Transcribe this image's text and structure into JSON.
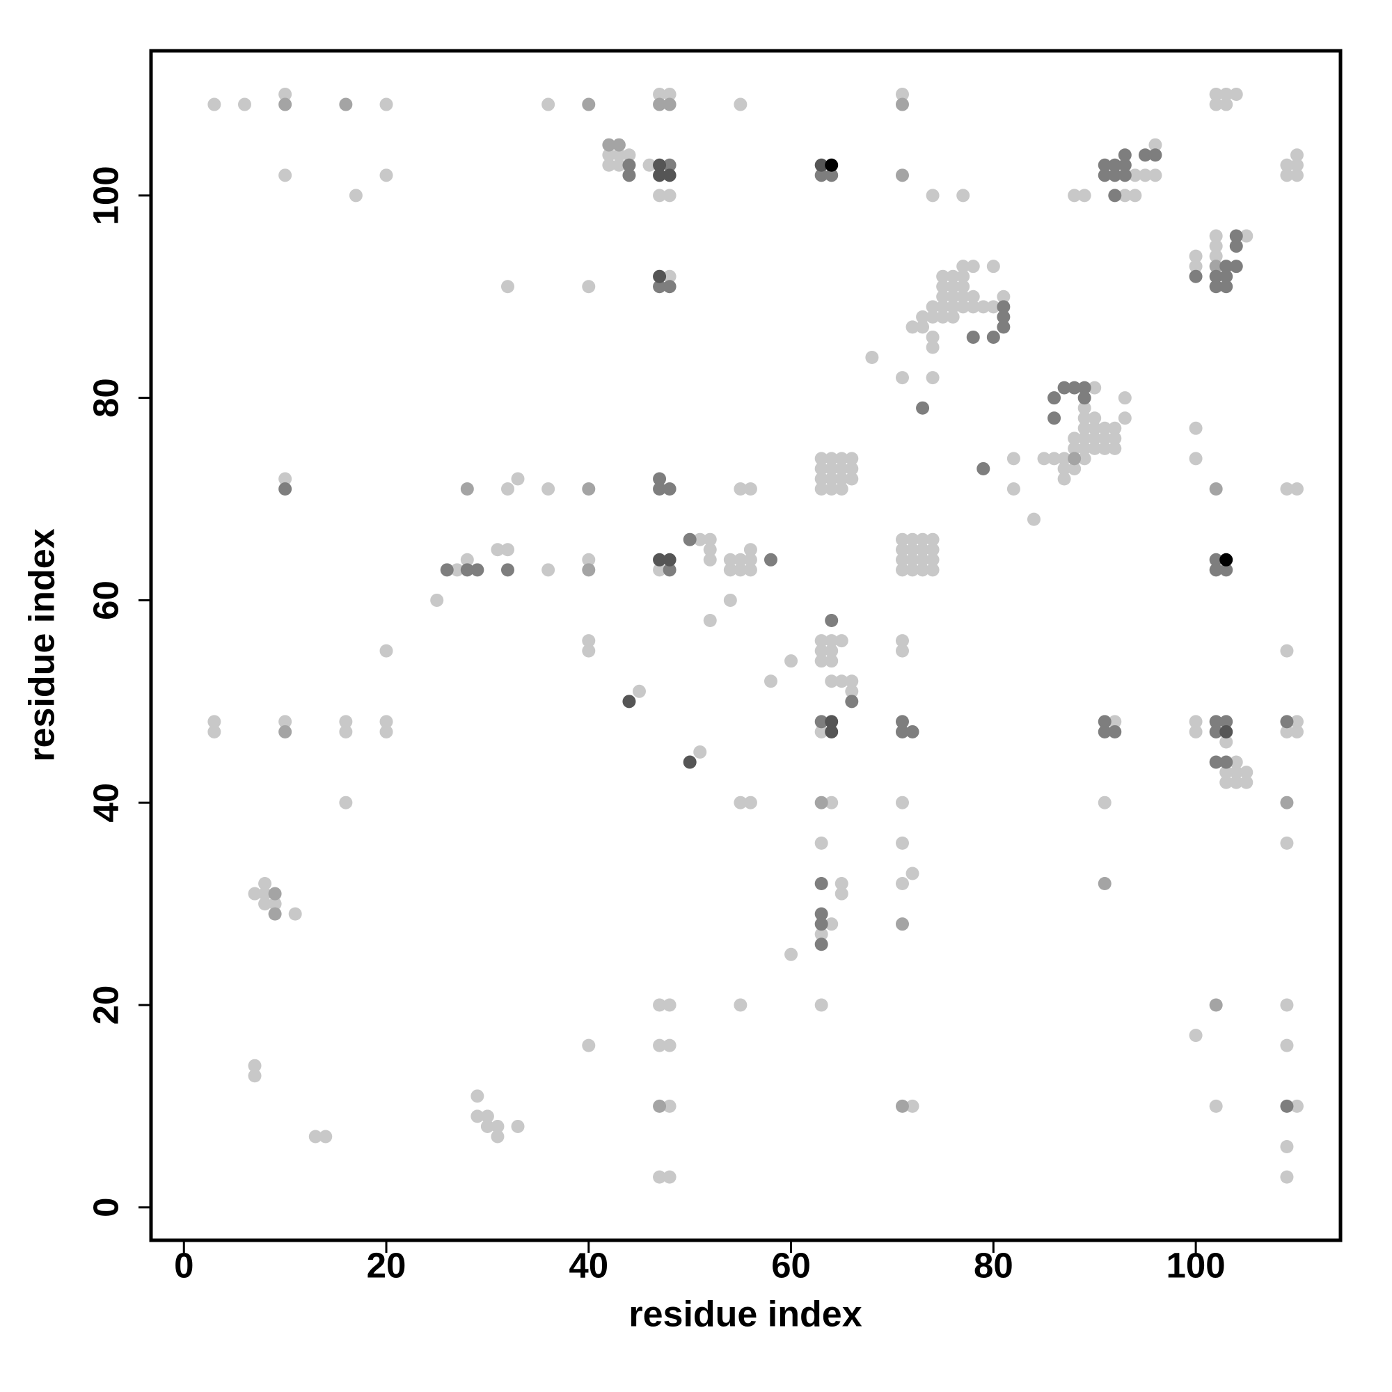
{
  "chart_data": {
    "type": "scatter",
    "xlabel": "residue index",
    "ylabel": "residue index",
    "xlim": [
      -3.25,
      114.3
    ],
    "ylim": [
      -3.25,
      114.3
    ],
    "xticks": [
      0,
      20,
      40,
      60,
      80,
      100
    ],
    "yticks": [
      0,
      20,
      40,
      60,
      80,
      100
    ],
    "grid": false,
    "series": [
      {
        "color": "#c8c8c8",
        "x": [
          10,
          47,
          48,
          71,
          102,
          103,
          104,
          3,
          6,
          20,
          36,
          55,
          102,
          103,
          96,
          42,
          43,
          44,
          110,
          42,
          43,
          46,
          109,
          110,
          10,
          20,
          94,
          95,
          96,
          109,
          110,
          17,
          47,
          48,
          74,
          77,
          88,
          89,
          93,
          94,
          102,
          105,
          102,
          100,
          102,
          77,
          78,
          80,
          100,
          48,
          75,
          76,
          77,
          32,
          40,
          75,
          76,
          77,
          75,
          76,
          77,
          78,
          81,
          74,
          75,
          76,
          77,
          78,
          79,
          80,
          73,
          74,
          75,
          76,
          72,
          73,
          74,
          74,
          68,
          71,
          74,
          90,
          93,
          89,
          89,
          90,
          93,
          89,
          90,
          91,
          92,
          100,
          88,
          89,
          90,
          91,
          92,
          88,
          89,
          90,
          91,
          92,
          63,
          64,
          65,
          66,
          82,
          85,
          86,
          87,
          89,
          100,
          63,
          64,
          65,
          66,
          87,
          88,
          10,
          33,
          63,
          64,
          65,
          66,
          87,
          32,
          36,
          55,
          56,
          63,
          64,
          65,
          82,
          109,
          110,
          84,
          51,
          52,
          71,
          72,
          73,
          74,
          31,
          32,
          52,
          56,
          71,
          72,
          73,
          74,
          28,
          40,
          52,
          54,
          55,
          56,
          71,
          72,
          73,
          74,
          27,
          36,
          47,
          54,
          55,
          56,
          71,
          72,
          73,
          74,
          25,
          54,
          52,
          40,
          63,
          64,
          65,
          71,
          20,
          40,
          63,
          64,
          71,
          109,
          60,
          63,
          64,
          58,
          64,
          65,
          66,
          45,
          66,
          3,
          10,
          16,
          20,
          92,
          100,
          110,
          3,
          16,
          20,
          63,
          100,
          109,
          110,
          103,
          51,
          104,
          103,
          104,
          105,
          103,
          104,
          105,
          16,
          55,
          56,
          64,
          71,
          91,
          63,
          71,
          109,
          72,
          8,
          65,
          71,
          7,
          8,
          65,
          8,
          9,
          11,
          64,
          63,
          60,
          47,
          48,
          55,
          63,
          109,
          100,
          40,
          47,
          48,
          109,
          7,
          7,
          29,
          48,
          72,
          102,
          110,
          29,
          30,
          30,
          31,
          33,
          13,
          14,
          31,
          109,
          47,
          48,
          109
        ],
        "values": [
          110,
          110,
          110,
          110,
          110,
          110,
          110,
          109,
          109,
          109,
          109,
          109,
          109,
          109,
          105,
          104,
          104,
          104,
          104,
          103,
          103,
          103,
          103,
          103,
          102,
          102,
          102,
          102,
          102,
          102,
          102,
          100,
          100,
          100,
          100,
          100,
          100,
          100,
          100,
          100,
          96,
          96,
          95,
          94,
          94,
          93,
          93,
          93,
          93,
          92,
          92,
          92,
          92,
          91,
          91,
          91,
          91,
          91,
          90,
          90,
          90,
          90,
          90,
          89,
          89,
          89,
          89,
          89,
          89,
          89,
          88,
          88,
          88,
          88,
          87,
          87,
          86,
          85,
          84,
          82,
          82,
          81,
          80,
          79,
          78,
          78,
          78,
          77,
          77,
          77,
          77,
          77,
          76,
          76,
          76,
          76,
          76,
          75,
          75,
          75,
          75,
          75,
          74,
          74,
          74,
          74,
          74,
          74,
          74,
          74,
          74,
          74,
          73,
          73,
          73,
          73,
          73,
          73,
          72,
          72,
          72,
          72,
          72,
          72,
          72,
          71,
          71,
          71,
          71,
          71,
          71,
          71,
          71,
          71,
          71,
          68,
          66,
          66,
          66,
          66,
          66,
          66,
          65,
          65,
          65,
          65,
          65,
          65,
          65,
          65,
          64,
          64,
          64,
          64,
          64,
          64,
          64,
          64,
          64,
          64,
          63,
          63,
          63,
          63,
          63,
          63,
          63,
          63,
          63,
          63,
          60,
          60,
          58,
          56,
          56,
          56,
          56,
          56,
          55,
          55,
          55,
          55,
          55,
          55,
          54,
          54,
          54,
          52,
          52,
          52,
          52,
          51,
          51,
          48,
          48,
          48,
          48,
          48,
          48,
          48,
          47,
          47,
          47,
          47,
          47,
          47,
          47,
          46,
          45,
          44,
          43,
          43,
          43,
          42,
          42,
          42,
          40,
          40,
          40,
          40,
          40,
          40,
          36,
          36,
          36,
          33,
          32,
          32,
          32,
          31,
          31,
          31,
          30,
          30,
          29,
          28,
          27,
          25,
          20,
          20,
          20,
          20,
          20,
          17,
          16,
          16,
          16,
          16,
          14,
          13,
          11,
          10,
          10,
          10,
          10,
          9,
          9,
          8,
          8,
          8,
          7,
          7,
          7,
          6,
          3,
          3,
          3
        ]
      },
      {
        "color": "#a4a4a4",
        "x": [
          10,
          16,
          40,
          47,
          48,
          71,
          42,
          43,
          71,
          102,
          88,
          28,
          40,
          102,
          40,
          10,
          63,
          109,
          91,
          9,
          9,
          71,
          102,
          47,
          71
        ],
        "values": [
          109,
          109,
          109,
          109,
          109,
          109,
          105,
          105,
          102,
          93,
          74,
          71,
          71,
          71,
          63,
          47,
          40,
          40,
          32,
          31,
          29,
          28,
          20,
          10,
          10
        ]
      },
      {
        "color": "#7e7e7e",
        "x": [
          93,
          95,
          96,
          44,
          48,
          91,
          92,
          93,
          44,
          63,
          64,
          91,
          92,
          93,
          92,
          104,
          104,
          103,
          104,
          100,
          102,
          103,
          47,
          48,
          102,
          103,
          81,
          81,
          81,
          78,
          80,
          87,
          88,
          89,
          86,
          89,
          73,
          86,
          79,
          47,
          10,
          47,
          48,
          50,
          58,
          102,
          26,
          28,
          29,
          32,
          48,
          102,
          103,
          64,
          66,
          63,
          71,
          91,
          102,
          103,
          109,
          71,
          72,
          91,
          92,
          102,
          102,
          103,
          63,
          63,
          63,
          63,
          109
        ],
        "values": [
          104,
          104,
          104,
          103,
          103,
          103,
          103,
          103,
          102,
          102,
          102,
          102,
          102,
          102,
          100,
          96,
          95,
          93,
          93,
          92,
          92,
          92,
          91,
          91,
          91,
          91,
          89,
          88,
          87,
          86,
          86,
          81,
          81,
          81,
          80,
          80,
          79,
          78,
          73,
          72,
          71,
          71,
          71,
          66,
          64,
          64,
          63,
          63,
          63,
          63,
          63,
          63,
          63,
          58,
          50,
          48,
          48,
          48,
          48,
          48,
          48,
          47,
          47,
          47,
          47,
          47,
          44,
          44,
          32,
          29,
          28,
          26,
          10
        ]
      },
      {
        "color": "#555555",
        "x": [
          47,
          63,
          47,
          48,
          47,
          47,
          48,
          44,
          64,
          64,
          103,
          50
        ],
        "values": [
          103,
          103,
          102,
          102,
          92,
          64,
          64,
          50,
          48,
          47,
          47,
          44
        ]
      },
      {
        "color": "#000000",
        "x": [
          64,
          103
        ],
        "values": [
          103,
          64
        ]
      }
    ]
  }
}
